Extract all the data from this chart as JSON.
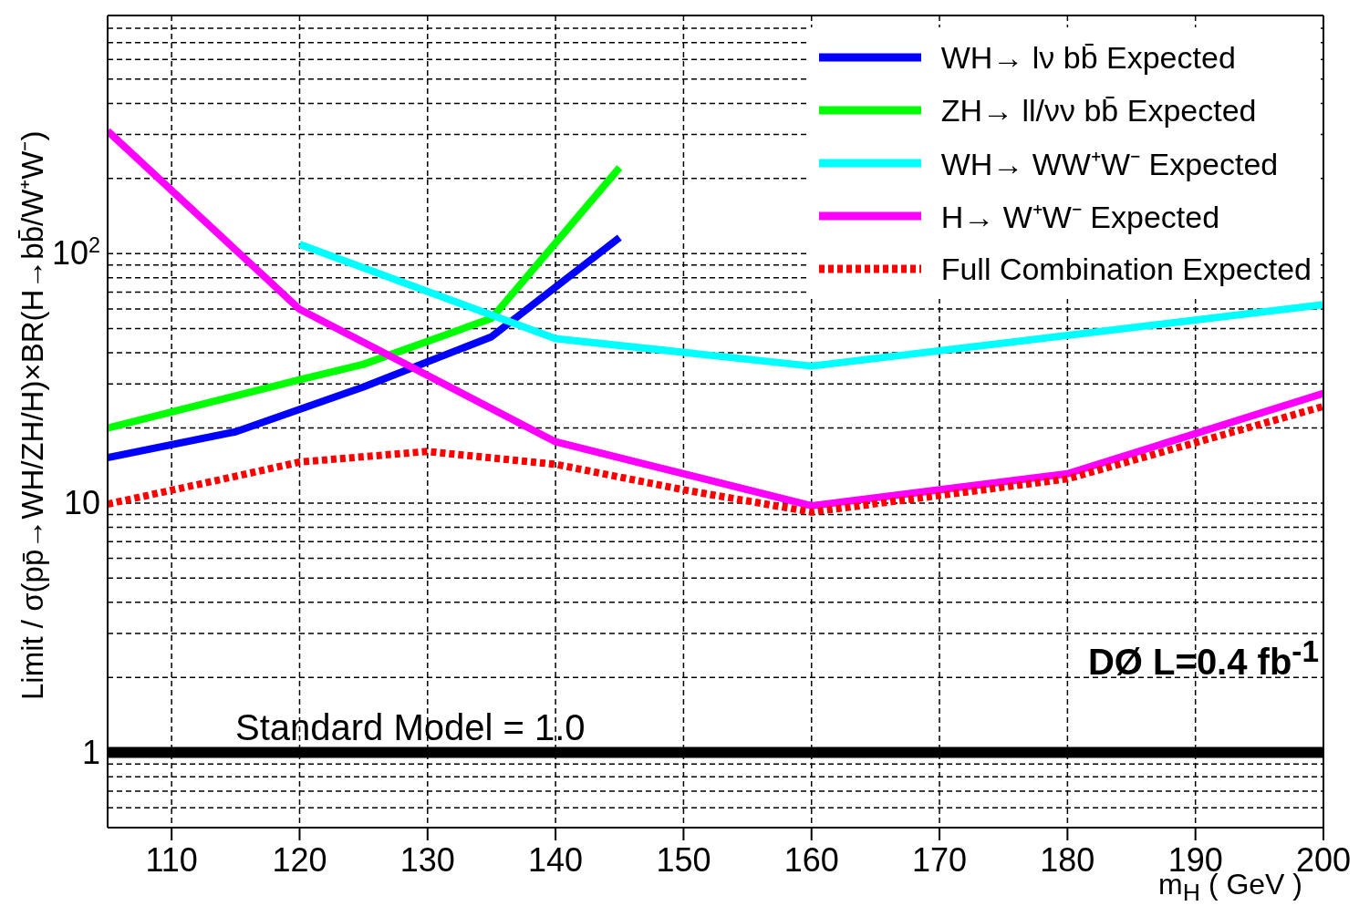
{
  "chart_data": {
    "type": "line",
    "xlabel": "m$_{H}$ ( GeV )",
    "ylabel": "Limit / σ(pp̄→WH/ZH/H)×BR(H→bb̄/W⁺W⁻)",
    "annotations": [
      "DØ L=0.4 fb$^{-1}$"
    ],
    "xlim": [
      105,
      200
    ],
    "xticks": [
      110,
      120,
      130,
      140,
      150,
      160,
      170,
      180,
      190,
      200
    ],
    "ylim": [
      0.5,
      900
    ],
    "log": true,
    "yticks": [
      {
        "value": 0.5,
        "label": null
      },
      {
        "value": 0.6,
        "label": null
      },
      {
        "value": 0.7,
        "label": null
      },
      {
        "value": 0.8,
        "label": null
      },
      {
        "value": 0.9,
        "label": null
      },
      {
        "value": 1,
        "label": "1"
      },
      {
        "value": 2,
        "label": null
      },
      {
        "value": 3,
        "label": null
      },
      {
        "value": 4,
        "label": null
      },
      {
        "value": 5,
        "label": null
      },
      {
        "value": 6,
        "label": null
      },
      {
        "value": 7,
        "label": null
      },
      {
        "value": 8,
        "label": null
      },
      {
        "value": 9,
        "label": null
      },
      {
        "value": 10,
        "label": "10"
      },
      {
        "value": 20,
        "label": null
      },
      {
        "value": 30,
        "label": null
      },
      {
        "value": 40,
        "label": null
      },
      {
        "value": 50,
        "label": null
      },
      {
        "value": 60,
        "label": null
      },
      {
        "value": 70,
        "label": null
      },
      {
        "value": 80,
        "label": null
      },
      {
        "value": 90,
        "label": null
      },
      {
        "value": 100,
        "label": "10$^{2}$"
      },
      {
        "value": 200,
        "label": null
      },
      {
        "value": 300,
        "label": null
      },
      {
        "value": 400,
        "label": null
      },
      {
        "value": 500,
        "label": null
      },
      {
        "value": 600,
        "label": null
      },
      {
        "value": 700,
        "label": null
      },
      {
        "value": 800,
        "label": null
      },
      {
        "value": 900,
        "label": null
      }
    ],
    "grid": true,
    "legend": "top right",
    "marker": "none",
    "ref_lines": [
      {
        "axis": "y",
        "value": 1,
        "label": "Standard Model = 1.0",
        "color": "#000000"
      }
    ],
    "series": [
      {
        "name": "WH→ lν bb̄ Expected",
        "color": "#0000ff",
        "x": [
          105,
          115,
          125,
          135,
          145
        ],
        "values": [
          15.2,
          19.3,
          29.2,
          46.4,
          116
        ]
      },
      {
        "name": "ZH→ ll/νν bb̄ Expected",
        "color": "#00ff00",
        "x": [
          105,
          120,
          125,
          135,
          145
        ],
        "values": [
          20,
          31.2,
          36,
          55,
          221
        ]
      },
      {
        "name": "WH→ WW⁺W⁻ Expected",
        "color": "#00ffff",
        "x": [
          120,
          140,
          160,
          200
        ],
        "values": [
          109,
          45.6,
          35.4,
          62.4
        ]
      },
      {
        "name": "H→ W⁺W⁻ Expected",
        "color": "#ff00ff",
        "x": [
          105,
          120,
          140,
          160,
          180,
          200
        ],
        "values": [
          310,
          59.8,
          17.6,
          9.75,
          13.1,
          27.5
        ]
      },
      {
        "name": "Full Combination Expected",
        "color": "#ff0000",
        "line_style": "dotted",
        "x": [
          105,
          115,
          120,
          130,
          140,
          150,
          160,
          180,
          200
        ],
        "values": [
          9.9,
          12.8,
          14.6,
          16.1,
          14.3,
          11.3,
          9.2,
          12.5,
          24.4
        ]
      }
    ]
  }
}
